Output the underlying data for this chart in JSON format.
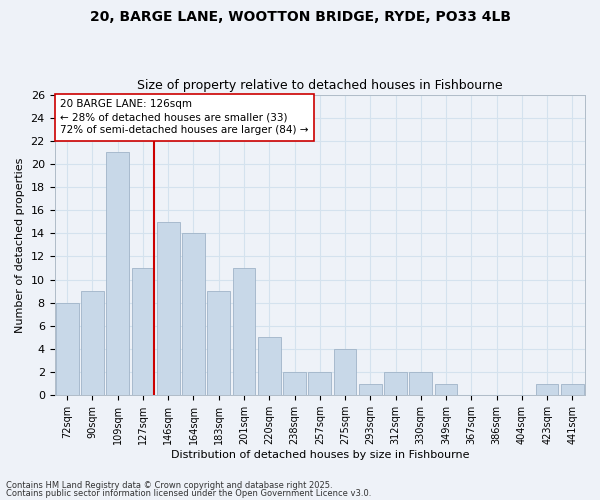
{
  "title1": "20, BARGE LANE, WOOTTON BRIDGE, RYDE, PO33 4LB",
  "title2": "Size of property relative to detached houses in Fishbourne",
  "xlabel": "Distribution of detached houses by size in Fishbourne",
  "ylabel": "Number of detached properties",
  "categories": [
    "72sqm",
    "90sqm",
    "109sqm",
    "127sqm",
    "146sqm",
    "164sqm",
    "183sqm",
    "201sqm",
    "220sqm",
    "238sqm",
    "257sqm",
    "275sqm",
    "293sqm",
    "312sqm",
    "330sqm",
    "349sqm",
    "367sqm",
    "386sqm",
    "404sqm",
    "423sqm",
    "441sqm"
  ],
  "values": [
    8,
    9,
    21,
    11,
    15,
    14,
    9,
    11,
    5,
    2,
    2,
    4,
    1,
    2,
    2,
    1,
    0,
    0,
    0,
    1,
    1
  ],
  "bar_color": "#c8d8e8",
  "bar_edge_color": "#a0b4c8",
  "vline_x_index": 3,
  "vline_color": "#cc0000",
  "annotation_text": "20 BARGE LANE: 126sqm\n← 28% of detached houses are smaller (33)\n72% of semi-detached houses are larger (84) →",
  "annotation_box_color": "#ffffff",
  "annotation_box_edge_color": "#cc0000",
  "ylim": [
    0,
    26
  ],
  "yticks": [
    0,
    2,
    4,
    6,
    8,
    10,
    12,
    14,
    16,
    18,
    20,
    22,
    24,
    26
  ],
  "grid_color": "#d4e2ee",
  "background_color": "#eef2f8",
  "footer1": "Contains HM Land Registry data © Crown copyright and database right 2025.",
  "footer2": "Contains public sector information licensed under the Open Government Licence v3.0."
}
